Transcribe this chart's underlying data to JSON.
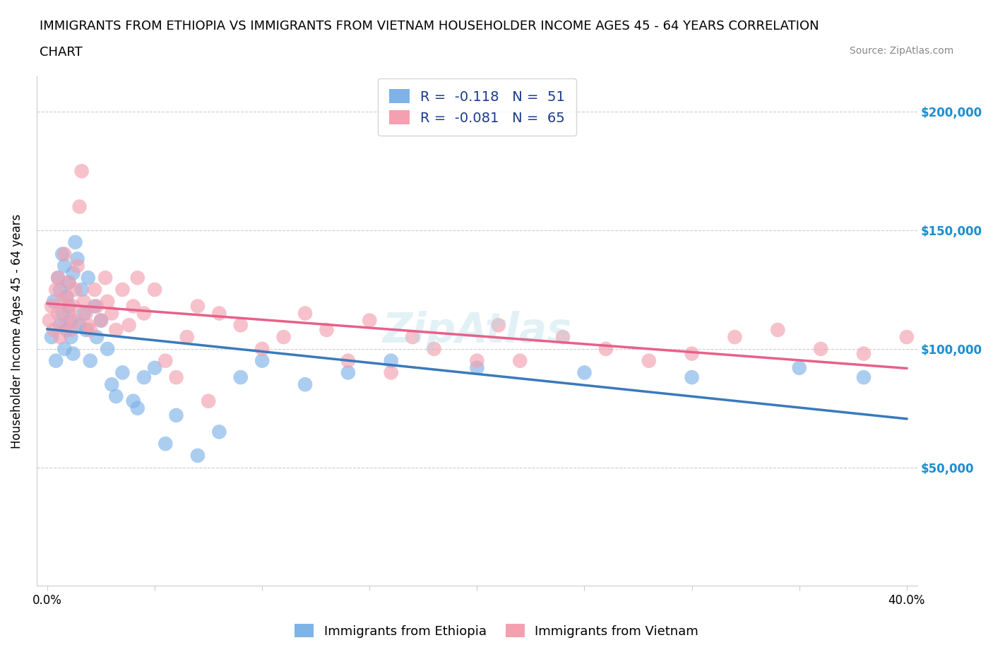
{
  "title_line1": "IMMIGRANTS FROM ETHIOPIA VS IMMIGRANTS FROM VIETNAM HOUSEHOLDER INCOME AGES 45 - 64 YEARS CORRELATION",
  "title_line2": "CHART",
  "source_text": "Source: ZipAtlas.com",
  "ylabel": "Householder Income Ages 45 - 64 years",
  "xlabel": "",
  "xlim": [
    0.0,
    0.4
  ],
  "ylim": [
    0,
    215000
  ],
  "yticks": [
    0,
    50000,
    100000,
    150000,
    200000
  ],
  "ytick_labels": [
    "",
    "$50,000",
    "$100,000",
    "$150,000",
    "$200,000"
  ],
  "xticks": [
    0.0,
    0.05,
    0.1,
    0.15,
    0.2,
    0.25,
    0.3,
    0.35,
    0.4
  ],
  "xtick_labels": [
    "0.0%",
    "",
    "",
    "",
    "",
    "",
    "",
    "",
    "40.0%"
  ],
  "ethiopia_color": "#7eb3e8",
  "vietnam_color": "#f4a0b0",
  "ethiopia_R": -0.118,
  "ethiopia_N": 51,
  "vietnam_R": -0.081,
  "vietnam_N": 65,
  "legend_R_color": "#1a3a8a",
  "legend_N_color": "#1a3a8a",
  "watermark": "ZipAtlas",
  "ethiopia_x": [
    0.002,
    0.003,
    0.004,
    0.005,
    0.006,
    0.006,
    0.007,
    0.007,
    0.008,
    0.008,
    0.009,
    0.009,
    0.01,
    0.01,
    0.011,
    0.011,
    0.012,
    0.012,
    0.013,
    0.014,
    0.015,
    0.016,
    0.017,
    0.018,
    0.019,
    0.02,
    0.022,
    0.023,
    0.025,
    0.028,
    0.03,
    0.032,
    0.035,
    0.04,
    0.042,
    0.045,
    0.05,
    0.055,
    0.06,
    0.07,
    0.08,
    0.09,
    0.1,
    0.12,
    0.14,
    0.16,
    0.2,
    0.25,
    0.3,
    0.35,
    0.38
  ],
  "ethiopia_y": [
    105000,
    120000,
    95000,
    130000,
    110000,
    125000,
    140000,
    115000,
    100000,
    135000,
    108000,
    122000,
    118000,
    128000,
    105000,
    112000,
    98000,
    132000,
    145000,
    138000,
    110000,
    125000,
    115000,
    108000,
    130000,
    95000,
    118000,
    105000,
    112000,
    100000,
    85000,
    80000,
    90000,
    78000,
    75000,
    88000,
    92000,
    60000,
    72000,
    55000,
    65000,
    88000,
    95000,
    85000,
    90000,
    95000,
    92000,
    90000,
    88000,
    92000,
    88000
  ],
  "vietnam_x": [
    0.001,
    0.002,
    0.003,
    0.004,
    0.005,
    0.005,
    0.006,
    0.007,
    0.008,
    0.008,
    0.009,
    0.01,
    0.01,
    0.011,
    0.012,
    0.013,
    0.013,
    0.014,
    0.015,
    0.016,
    0.017,
    0.018,
    0.019,
    0.02,
    0.022,
    0.023,
    0.025,
    0.027,
    0.028,
    0.03,
    0.032,
    0.035,
    0.038,
    0.04,
    0.042,
    0.045,
    0.05,
    0.055,
    0.06,
    0.065,
    0.07,
    0.075,
    0.08,
    0.09,
    0.1,
    0.11,
    0.12,
    0.13,
    0.14,
    0.15,
    0.16,
    0.17,
    0.18,
    0.2,
    0.21,
    0.22,
    0.24,
    0.26,
    0.28,
    0.3,
    0.32,
    0.34,
    0.36,
    0.38,
    0.4
  ],
  "vietnam_y": [
    112000,
    118000,
    108000,
    125000,
    115000,
    130000,
    105000,
    120000,
    110000,
    140000,
    122000,
    115000,
    128000,
    108000,
    118000,
    112000,
    125000,
    135000,
    160000,
    175000,
    120000,
    115000,
    110000,
    108000,
    125000,
    118000,
    112000,
    130000,
    120000,
    115000,
    108000,
    125000,
    110000,
    118000,
    130000,
    115000,
    125000,
    95000,
    88000,
    105000,
    118000,
    78000,
    115000,
    110000,
    100000,
    105000,
    115000,
    108000,
    95000,
    112000,
    90000,
    105000,
    100000,
    95000,
    110000,
    95000,
    105000,
    100000,
    95000,
    98000,
    105000,
    108000,
    100000,
    98000,
    105000
  ]
}
